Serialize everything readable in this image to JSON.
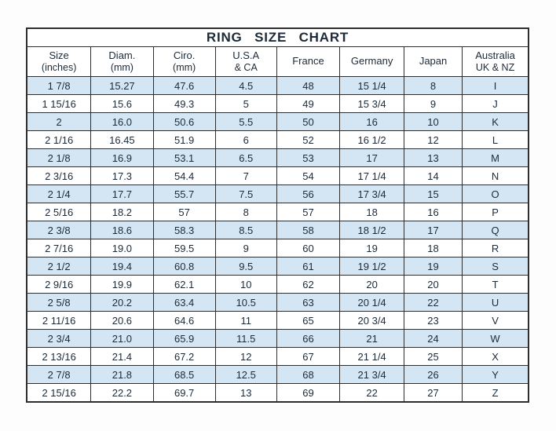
{
  "header": {
    "title": "RING SIZE CHART"
  },
  "colors": {
    "row_alt_blue": "#d4e6f4",
    "border": "#2e2e2e",
    "text": "#1d2a38",
    "background": "#fdfdfd"
  },
  "chart_data": {
    "type": "table",
    "title": "RING SIZE CHART",
    "grid": true,
    "row_shading": "alternating, first data row shaded light blue",
    "columns": [
      {
        "label": "Size",
        "sublabel": "(inches)"
      },
      {
        "label": "Diam.",
        "sublabel": "(mm)"
      },
      {
        "label": "Ciro.",
        "sublabel": "(mm)"
      },
      {
        "label": "U.S.A",
        "sublabel": "& CA"
      },
      {
        "label": "France",
        "sublabel": ""
      },
      {
        "label": "Germany",
        "sublabel": ""
      },
      {
        "label": "Japan",
        "sublabel": ""
      },
      {
        "label": "Australia",
        "sublabel": "UK & NZ"
      }
    ],
    "rows": [
      [
        "1 7/8",
        "15.27",
        "47.6",
        "4.5",
        "48",
        "15 1/4",
        "8",
        "I"
      ],
      [
        "1 15/16",
        "15.6",
        "49.3",
        "5",
        "49",
        "15 3/4",
        "9",
        "J"
      ],
      [
        "2",
        "16.0",
        "50.6",
        "5.5",
        "50",
        "16",
        "10",
        "K"
      ],
      [
        "2 1/16",
        "16.45",
        "51.9",
        "6",
        "52",
        "16 1/2",
        "12",
        "L"
      ],
      [
        "2 1/8",
        "16.9",
        "53.1",
        "6.5",
        "53",
        "17",
        "13",
        "M"
      ],
      [
        "2 3/16",
        "17.3",
        "54.4",
        "7",
        "54",
        "17 1/4",
        "14",
        "N"
      ],
      [
        "2 1/4",
        "17.7",
        "55.7",
        "7.5",
        "56",
        "17 3/4",
        "15",
        "O"
      ],
      [
        "2 5/16",
        "18.2",
        "57",
        "8",
        "57",
        "18",
        "16",
        "P"
      ],
      [
        "2 3/8",
        "18.6",
        "58.3",
        "8.5",
        "58",
        "18 1/2",
        "17",
        "Q"
      ],
      [
        "2 7/16",
        "19.0",
        "59.5",
        "9",
        "60",
        "19",
        "18",
        "R"
      ],
      [
        "2 1/2",
        "19.4",
        "60.8",
        "9.5",
        "61",
        "19 1/2",
        "19",
        "S"
      ],
      [
        "2 9/16",
        "19.9",
        "62.1",
        "10",
        "62",
        "20",
        "20",
        "T"
      ],
      [
        "2 5/8",
        "20.2",
        "63.4",
        "10.5",
        "63",
        "20 1/4",
        "22",
        "U"
      ],
      [
        "2 11/16",
        "20.6",
        "64.6",
        "11",
        "65",
        "20 3/4",
        "23",
        "V"
      ],
      [
        "2 3/4",
        "21.0",
        "65.9",
        "11.5",
        "66",
        "21",
        "24",
        "W"
      ],
      [
        "2 13/16",
        "21.4",
        "67.2",
        "12",
        "67",
        "21 1/4",
        "25",
        "X"
      ],
      [
        "2 7/8",
        "21.8",
        "68.5",
        "12.5",
        "68",
        "21 3/4",
        "26",
        "Y"
      ],
      [
        "2 15/16",
        "22.2",
        "69.7",
        "13",
        "69",
        "22",
        "27",
        "Z"
      ]
    ]
  }
}
